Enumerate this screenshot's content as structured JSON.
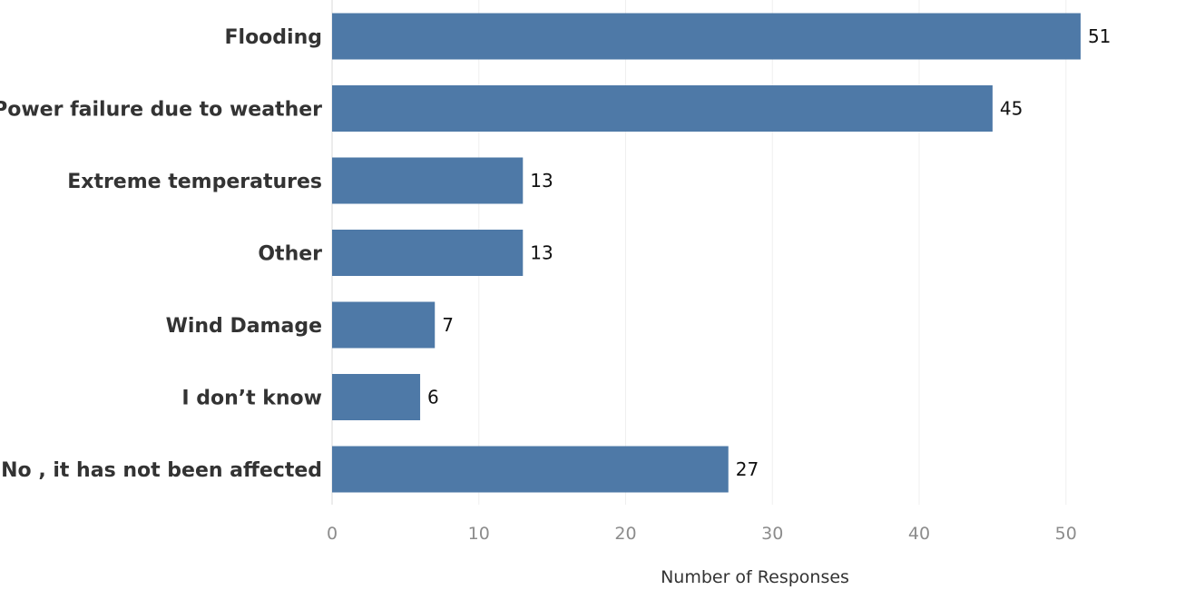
{
  "chart_data": {
    "type": "bar",
    "orientation": "horizontal",
    "categories": [
      "Flooding",
      "Power failure due to weather",
      "Extreme temperatures",
      "Other",
      "Wind Damage",
      "I don’t know",
      "No , it has not been affected"
    ],
    "values": [
      51,
      45,
      13,
      13,
      7,
      6,
      27
    ],
    "xlabel": "Number of Responses",
    "ylabel": "",
    "xlim": [
      0,
      57
    ],
    "xticks": [
      0,
      10,
      20,
      30,
      40,
      50
    ],
    "grid": true,
    "bar_color": "#4e79a7"
  }
}
